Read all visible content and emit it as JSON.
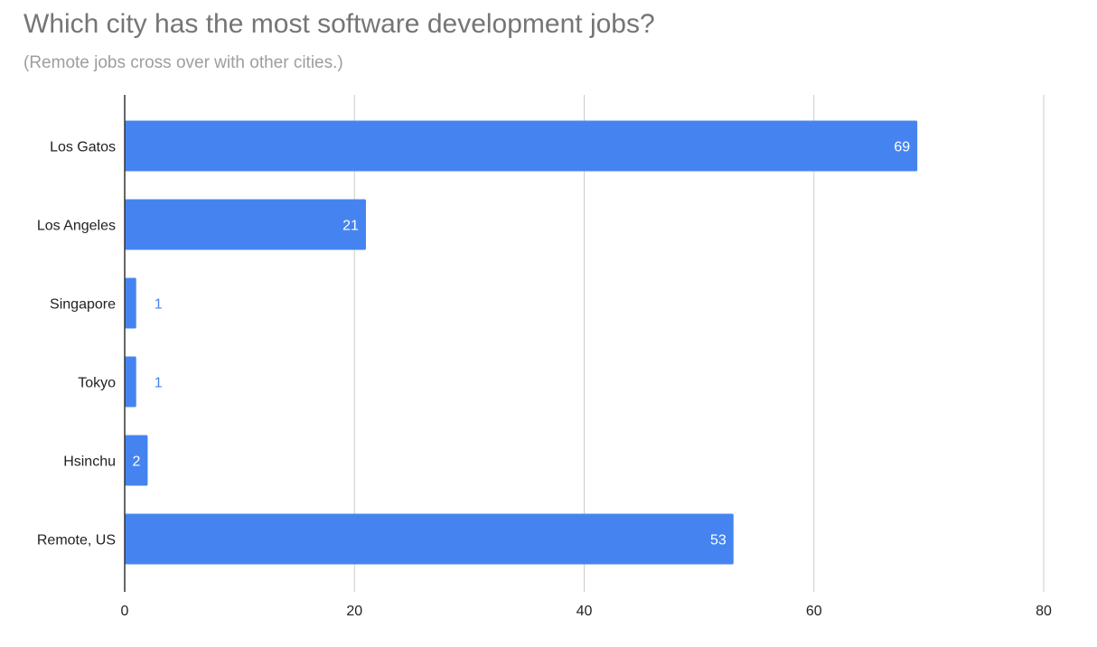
{
  "chart_data": {
    "type": "bar",
    "orientation": "horizontal",
    "title": "Which city has the most software development jobs?",
    "subtitle": "(Remote jobs cross over with other cities.)",
    "categories": [
      "Los Gatos",
      "Los Angeles",
      "Singapore",
      "Tokyo",
      "Hsinchu",
      "Remote, US"
    ],
    "values": [
      69,
      21,
      1,
      1,
      2,
      53
    ],
    "xlim": [
      0,
      80
    ],
    "xticks": [
      0,
      20,
      40,
      60,
      80
    ],
    "grid": true,
    "legend": "none",
    "colors": {
      "bar": "#4584f0",
      "label_inside": "#ffffff",
      "label_outside": "#4584f0",
      "grid": "#cccccc",
      "axis": "#333333",
      "tick_text": "#222222"
    }
  }
}
